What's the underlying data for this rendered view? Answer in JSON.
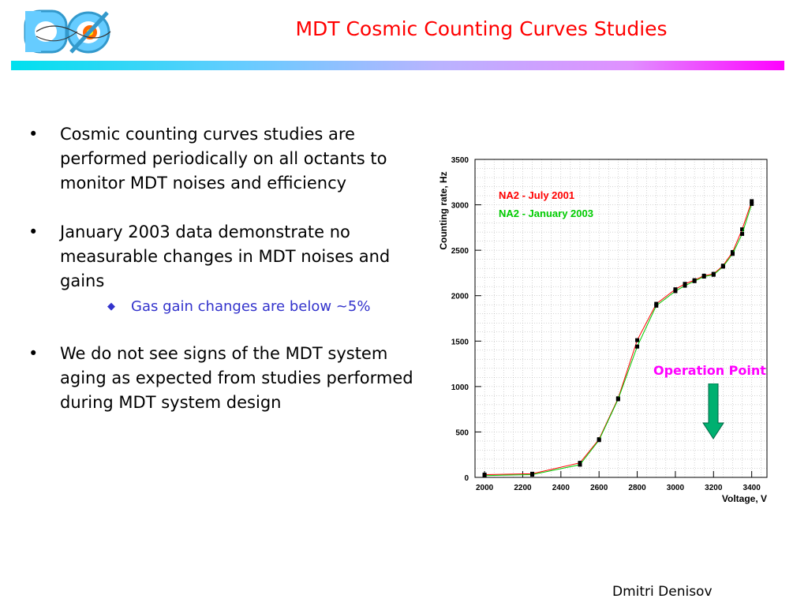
{
  "slide": {
    "title": "MDT Cosmic Counting Curves Studies",
    "author": "Dmitri Denisov",
    "logo_text": "DØ",
    "bullets": [
      "Cosmic counting curves studies are performed periodically on all octants to monitor MDT noises and efficiency",
      "January 2003 data demonstrate no measurable changes in MDT noises and gains",
      "We do not see signs of the MDT system aging as expected from studies performed during MDT system design"
    ],
    "sub_bullet": "Gas gain changes are below ~5%",
    "operation_point_label": "Operation Point"
  },
  "colors": {
    "title": "#ff0000",
    "sub_bullet": "#3333cc",
    "operation_point": "#ff00ff",
    "arrow": "#00b070"
  },
  "chart_data": {
    "type": "line",
    "xlabel": "Voltage, V",
    "ylabel": "Counting rate, Hz",
    "xlim": [
      1950,
      3480
    ],
    "ylim": [
      0,
      3500
    ],
    "xticks": [
      2000,
      2200,
      2400,
      2600,
      2800,
      3000,
      3200,
      3400
    ],
    "yticks": [
      0,
      500,
      1000,
      1500,
      2000,
      2500,
      3000,
      3500
    ],
    "grid": true,
    "legend_position": "top-left",
    "series": [
      {
        "name": "NA2 - July 2001",
        "color": "#ff0000",
        "x": [
          2000,
          2250,
          2500,
          2600,
          2700,
          2800,
          2900,
          3000,
          3050,
          3100,
          3150,
          3200,
          3250,
          3300,
          3350,
          3400
        ],
        "y": [
          30,
          40,
          160,
          420,
          870,
          1510,
          1910,
          2070,
          2130,
          2170,
          2220,
          2240,
          2330,
          2480,
          2730,
          3040
        ]
      },
      {
        "name": "NA2 - January 2003",
        "color": "#00cc00",
        "x": [
          2000,
          2250,
          2500,
          2600,
          2700,
          2800,
          2900,
          3000,
          3050,
          3100,
          3150,
          3200,
          3250,
          3300,
          3350,
          3400
        ],
        "y": [
          20,
          30,
          140,
          410,
          860,
          1440,
          1890,
          2050,
          2110,
          2160,
          2210,
          2230,
          2320,
          2460,
          2680,
          3010
        ]
      }
    ]
  }
}
